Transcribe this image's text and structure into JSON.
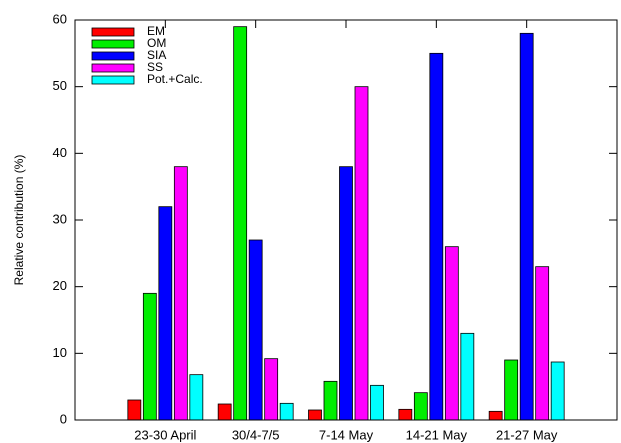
{
  "chart_data": {
    "type": "grouped-bar",
    "y_label": "Relative contribution (%)",
    "categories": [
      "23-30 April",
      "30/4-7/5",
      "7-14 May",
      "14-21 May",
      "21-27 May"
    ],
    "series": [
      {
        "name": "EM",
        "color": "#ff0000",
        "values": [
          3,
          2.4,
          1.5,
          1.6,
          1.3
        ]
      },
      {
        "name": "OM",
        "color": "#00ee00",
        "values": [
          19,
          59,
          5.8,
          4.1,
          9
        ]
      },
      {
        "name": "SIA",
        "color": "#0000ff",
        "values": [
          32,
          27,
          38,
          55,
          58
        ]
      },
      {
        "name": "SS",
        "color": "#ff00ff",
        "values": [
          38,
          9.2,
          50,
          26,
          23
        ]
      },
      {
        "name": "Pot.+Calc.",
        "color": "#00ffff",
        "values": [
          6.8,
          2.5,
          5.2,
          13,
          8.7
        ]
      }
    ],
    "ylim": [
      0,
      60
    ],
    "yticks": [
      0,
      10,
      20,
      30,
      40,
      50,
      60
    ],
    "legend": "upper left"
  }
}
